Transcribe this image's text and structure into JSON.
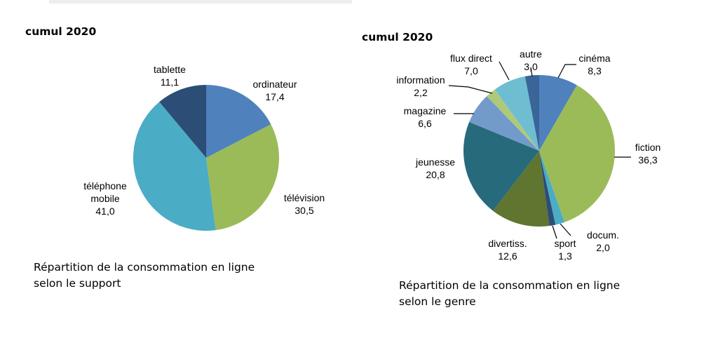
{
  "chart_data": [
    {
      "type": "pie",
      "title": "cumul 2020",
      "caption": [
        "Répartition de la consommation en ligne",
        "selon le support"
      ],
      "slices": [
        {
          "label": [
            "ordinateur"
          ],
          "value": 17.4,
          "value_label": "17,4",
          "color": "#4f81bd"
        },
        {
          "label": [
            "télévision"
          ],
          "value": 30.5,
          "value_label": "30,5",
          "color": "#9bbb59"
        },
        {
          "label": [
            "téléphone",
            "mobile"
          ],
          "value": 41.0,
          "value_label": "41,0",
          "color": "#4bacc6"
        },
        {
          "label": [
            "tablette"
          ],
          "value": 11.1,
          "value_label": "11,1",
          "color": "#2c4d75"
        }
      ]
    },
    {
      "type": "pie",
      "title": "cumul 2020",
      "caption": [
        "Répartition de la consommation en ligne",
        "selon le genre"
      ],
      "slices": [
        {
          "label": [
            "cinéma"
          ],
          "value": 8.3,
          "value_label": "8,3",
          "color": "#4f81bd"
        },
        {
          "label": [
            "fiction"
          ],
          "value": 36.3,
          "value_label": "36,3",
          "color": "#9bbb59"
        },
        {
          "label": [
            "docum."
          ],
          "value": 2.0,
          "value_label": "2,0",
          "color": "#4bacc6"
        },
        {
          "label": [
            "sport"
          ],
          "value": 1.3,
          "value_label": "1,3",
          "color": "#2c4d75"
        },
        {
          "label": [
            "divertiss."
          ],
          "value": 12.6,
          "value_label": "12,6",
          "color": "#5f7530"
        },
        {
          "label": [
            "jeunesse"
          ],
          "value": 20.8,
          "value_label": "20,8",
          "color": "#276a7c"
        },
        {
          "label": [
            "magazine"
          ],
          "value": 6.6,
          "value_label": "6,6",
          "color": "#729aca"
        },
        {
          "label": [
            "information"
          ],
          "value": 2.2,
          "value_label": "2,2",
          "color": "#afc97a"
        },
        {
          "label": [
            "flux direct"
          ],
          "value": 7.0,
          "value_label": "7,0",
          "color": "#6fbdd1"
        },
        {
          "label": [
            "autre"
          ],
          "value": 3.0,
          "value_label": "3,0",
          "color": "#3a6598"
        }
      ]
    }
  ]
}
